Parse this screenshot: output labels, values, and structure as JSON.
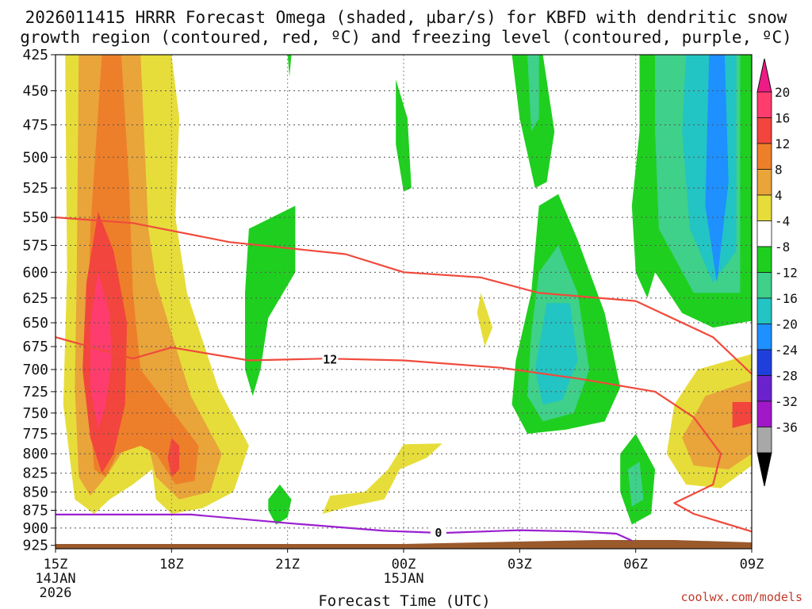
{
  "title": {
    "line1": "2026011415 HRRR Forecast Omega (shaded, µbar/s) for KBFD with dendritic snow",
    "line2": "growth region (contoured, red, ºC) and freezing level (contoured, purple, ºC)"
  },
  "credit": "coolwx.com/models",
  "chart_data": {
    "type": "heatmap",
    "title": "2026011415 HRRR Forecast Omega (shaded, µbar/s) for KBFD with dendritic snow growth region (contoured, red, ºC) and freezing level (contoured, purple, ºC)",
    "xlabel": "Forecast Time (UTC)",
    "ylabel": "",
    "x_range_hours": [
      0,
      18
    ],
    "x_ticks": [
      {
        "hour": 0,
        "label": "15Z",
        "sub": [
          "14JAN",
          "2026"
        ]
      },
      {
        "hour": 3,
        "label": "18Z",
        "sub": []
      },
      {
        "hour": 6,
        "label": "21Z",
        "sub": []
      },
      {
        "hour": 9,
        "label": "00Z",
        "sub": [
          "15JAN"
        ]
      },
      {
        "hour": 12,
        "label": "03Z",
        "sub": []
      },
      {
        "hour": 15,
        "label": "06Z",
        "sub": []
      },
      {
        "hour": 18,
        "label": "09Z",
        "sub": []
      }
    ],
    "y_ticks": [
      425,
      450,
      475,
      500,
      525,
      550,
      575,
      600,
      625,
      650,
      675,
      700,
      725,
      750,
      775,
      800,
      825,
      850,
      875,
      900,
      925
    ],
    "y_range": [
      425,
      930
    ],
    "y_scale": "log-pressure",
    "grid": true,
    "colorbar": {
      "labels": [
        "20",
        "16",
        "12",
        "8",
        "4",
        "-4",
        "-8",
        "-12",
        "-16",
        "-20",
        "-24",
        "-28",
        "-32",
        "-36"
      ],
      "colors": [
        "#ff3c6e",
        "#f2453d",
        "#ee7f2a",
        "#e9a43a",
        "#e6dd3a",
        "#ffffff",
        "#1fcf1f",
        "#3fd08a",
        "#22c4c4",
        "#1e90ff",
        "#1f3fdd",
        "#6a22cc",
        "#a018c8",
        "#a8a8a8"
      ],
      "top_color": "#ee1a86",
      "bottom_color": "#000000"
    },
    "series": [
      {
        "name": "12",
        "color": "#f04a3c",
        "x": [
          0,
          2.0,
          4.5,
          7.5,
          9.0,
          11.0,
          12.5,
          15.0,
          17.0,
          18.0
        ],
        "y": [
          550,
          555,
          572,
          583,
          600,
          605,
          620,
          628,
          665,
          705
        ]
      },
      {
        "name": "12",
        "color": "#f04a3c",
        "x": [
          0,
          2.0,
          3.0,
          5.0,
          7.0,
          9.0,
          11.5,
          13.5,
          15.5,
          16.5,
          17.2,
          17.0,
          16.0,
          16.5,
          18.0
        ],
        "y": [
          665,
          688,
          676,
          690,
          688,
          690,
          698,
          710,
          725,
          755,
          800,
          840,
          865,
          880,
          905
        ]
      },
      {
        "name": "0",
        "color": "#9b1fd0",
        "x": [
          0,
          3.5,
          6.0,
          8.5,
          10.0,
          12.0,
          13.5,
          14.5,
          14.9
        ],
        "y": [
          881,
          881,
          893,
          904,
          907,
          903,
          905,
          908,
          918
        ]
      }
    ],
    "contour_labels": [
      {
        "text": "12",
        "x": 7.1,
        "y": 689
      },
      {
        "text": "0",
        "x": 9.9,
        "y": 907
      }
    ],
    "shaded_regions": [
      {
        "value": 4,
        "color": "#e6dd3a",
        "points": [
          [
            0.25,
            425
          ],
          [
            3.0,
            425
          ],
          [
            3.2,
            470
          ],
          [
            3.1,
            550
          ],
          [
            3.4,
            620
          ],
          [
            4.2,
            720
          ],
          [
            5.0,
            790
          ],
          [
            4.6,
            850
          ],
          [
            3.8,
            872
          ],
          [
            3.0,
            880
          ],
          [
            2.6,
            860
          ],
          [
            2.5,
            820
          ],
          [
            2.0,
            840
          ],
          [
            1.4,
            860
          ],
          [
            1.0,
            880
          ],
          [
            0.5,
            860
          ],
          [
            0.2,
            740
          ],
          [
            0.3,
            600
          ]
        ]
      },
      {
        "value": 8,
        "color": "#e9a43a",
        "points": [
          [
            0.6,
            425
          ],
          [
            2.2,
            425
          ],
          [
            2.4,
            560
          ],
          [
            2.6,
            610
          ],
          [
            3.5,
            730
          ],
          [
            4.3,
            800
          ],
          [
            4.0,
            850
          ],
          [
            3.2,
            860
          ],
          [
            2.6,
            830
          ],
          [
            2.4,
            790
          ],
          [
            2.2,
            780
          ],
          [
            1.7,
            800
          ],
          [
            1.3,
            830
          ],
          [
            0.9,
            855
          ],
          [
            0.6,
            830
          ],
          [
            0.5,
            720
          ],
          [
            0.55,
            600
          ]
        ]
      },
      {
        "value": 12,
        "color": "#ee7f2a",
        "points": [
          [
            1.2,
            425
          ],
          [
            1.7,
            425
          ],
          [
            1.9,
            520
          ],
          [
            2.0,
            620
          ],
          [
            2.2,
            700
          ],
          [
            3.7,
            790
          ],
          [
            3.6,
            835
          ],
          [
            3.1,
            840
          ],
          [
            2.6,
            800
          ],
          [
            2.2,
            790
          ],
          [
            1.6,
            800
          ],
          [
            1.3,
            830
          ],
          [
            1.0,
            820
          ],
          [
            0.8,
            700
          ],
          [
            0.9,
            560
          ]
        ]
      },
      {
        "value": 16,
        "color": "#f2453d",
        "points": [
          [
            1.1,
            545
          ],
          [
            1.5,
            580
          ],
          [
            1.85,
            650
          ],
          [
            1.8,
            740
          ],
          [
            1.5,
            800
          ],
          [
            1.2,
            825
          ],
          [
            0.9,
            780
          ],
          [
            0.7,
            700
          ],
          [
            0.8,
            610
          ]
        ]
      },
      {
        "value": 16,
        "color": "#f2453d",
        "points": [
          [
            3.0,
            780
          ],
          [
            3.2,
            790
          ],
          [
            3.2,
            820
          ],
          [
            3.0,
            830
          ],
          [
            2.9,
            805
          ]
        ]
      },
      {
        "value": 20,
        "color": "#ff3c6e",
        "points": [
          [
            1.1,
            600
          ],
          [
            1.4,
            640
          ],
          [
            1.45,
            690
          ],
          [
            1.3,
            740
          ],
          [
            1.1,
            770
          ],
          [
            0.9,
            720
          ],
          [
            0.9,
            650
          ]
        ]
      },
      {
        "value": -4,
        "color": "#1fcf1f",
        "points": [
          [
            5.0,
            560
          ],
          [
            6.2,
            540
          ],
          [
            6.2,
            600
          ],
          [
            5.5,
            645
          ],
          [
            5.3,
            700
          ],
          [
            5.1,
            730
          ],
          [
            4.9,
            700
          ],
          [
            4.9,
            620
          ]
        ]
      },
      {
        "value": -4,
        "color": "#1fcf1f",
        "points": [
          [
            6.0,
            425
          ],
          [
            6.1,
            425
          ],
          [
            6.05,
            440
          ]
        ]
      },
      {
        "value": -4,
        "color": "#1fcf1f",
        "points": [
          [
            5.5,
            860
          ],
          [
            5.8,
            840
          ],
          [
            6.1,
            860
          ],
          [
            6.0,
            885
          ],
          [
            5.7,
            895
          ],
          [
            5.5,
            875
          ]
        ]
      },
      {
        "value": -4,
        "color": "#1fcf1f",
        "points": [
          [
            8.8,
            442
          ],
          [
            9.1,
            470
          ],
          [
            9.2,
            525
          ],
          [
            9.0,
            528
          ],
          [
            8.8,
            490
          ]
        ]
      },
      {
        "value": -4,
        "color": "#1fcf1f",
        "points": [
          [
            11.8,
            425
          ],
          [
            12.6,
            425
          ],
          [
            12.9,
            480
          ],
          [
            12.7,
            520
          ],
          [
            12.4,
            525
          ],
          [
            12.0,
            470
          ]
        ]
      },
      {
        "value": -4,
        "color": "#1fcf1f",
        "points": [
          [
            12.5,
            540
          ],
          [
            13.0,
            530
          ],
          [
            13.5,
            570
          ],
          [
            14.2,
            640
          ],
          [
            14.6,
            720
          ],
          [
            14.2,
            760
          ],
          [
            13.2,
            770
          ],
          [
            12.2,
            775
          ],
          [
            11.8,
            740
          ],
          [
            11.9,
            690
          ],
          [
            12.3,
            620
          ]
        ]
      },
      {
        "value": -4,
        "color": "#1fcf1f",
        "points": [
          [
            15.1,
            425
          ],
          [
            18.0,
            425
          ],
          [
            18.0,
            648
          ],
          [
            17.0,
            655
          ],
          [
            16.2,
            640
          ],
          [
            15.5,
            600
          ],
          [
            15.3,
            625
          ],
          [
            15.0,
            600
          ],
          [
            14.9,
            540
          ],
          [
            15.1,
            480
          ]
        ]
      },
      {
        "value": -4,
        "color": "#1fcf1f",
        "points": [
          [
            14.6,
            800
          ],
          [
            15.0,
            775
          ],
          [
            15.5,
            820
          ],
          [
            15.4,
            880
          ],
          [
            14.9,
            895
          ],
          [
            14.6,
            850
          ]
        ]
      },
      {
        "value": -8,
        "color": "#3fd08a",
        "points": [
          [
            12.2,
            425
          ],
          [
            12.5,
            425
          ],
          [
            12.5,
            470
          ],
          [
            12.3,
            480
          ]
        ]
      },
      {
        "value": -8,
        "color": "#3fd08a",
        "points": [
          [
            12.5,
            600
          ],
          [
            13.0,
            575
          ],
          [
            13.5,
            620
          ],
          [
            13.8,
            700
          ],
          [
            13.4,
            750
          ],
          [
            12.6,
            760
          ],
          [
            12.2,
            730
          ],
          [
            12.3,
            660
          ]
        ]
      },
      {
        "value": -8,
        "color": "#3fd08a",
        "points": [
          [
            15.5,
            425
          ],
          [
            17.7,
            425
          ],
          [
            17.7,
            620
          ],
          [
            16.5,
            620
          ],
          [
            15.6,
            560
          ],
          [
            15.5,
            480
          ]
        ]
      },
      {
        "value": -8,
        "color": "#3fd08a",
        "points": [
          [
            14.8,
            820
          ],
          [
            15.1,
            810
          ],
          [
            15.2,
            860
          ],
          [
            14.9,
            870
          ]
        ]
      },
      {
        "value": -12,
        "color": "#22c4c4",
        "points": [
          [
            12.7,
            630
          ],
          [
            13.3,
            630
          ],
          [
            13.5,
            690
          ],
          [
            13.1,
            735
          ],
          [
            12.6,
            740
          ],
          [
            12.4,
            700
          ]
        ]
      },
      {
        "value": -12,
        "color": "#22c4c4",
        "points": [
          [
            16.3,
            425
          ],
          [
            17.6,
            425
          ],
          [
            17.6,
            580
          ],
          [
            17.0,
            610
          ],
          [
            16.4,
            560
          ],
          [
            16.2,
            480
          ]
        ]
      },
      {
        "value": -16,
        "color": "#1e90ff",
        "points": [
          [
            16.9,
            425
          ],
          [
            17.3,
            425
          ],
          [
            17.4,
            520
          ],
          [
            17.1,
            610
          ],
          [
            16.8,
            540
          ]
        ]
      },
      {
        "value": 4,
        "color": "#e6dd3a",
        "points": [
          [
            9.0,
            788
          ],
          [
            10.0,
            787
          ],
          [
            9.6,
            805
          ],
          [
            8.9,
            820
          ],
          [
            8.5,
            860
          ],
          [
            7.6,
            870
          ],
          [
            6.9,
            880
          ],
          [
            7.1,
            855
          ],
          [
            8.0,
            850
          ],
          [
            8.6,
            820
          ]
        ]
      },
      {
        "value": 4,
        "color": "#e6dd3a",
        "points": [
          [
            11.0,
            620
          ],
          [
            11.3,
            655
          ],
          [
            11.1,
            675
          ],
          [
            10.9,
            640
          ]
        ]
      },
      {
        "value": 4,
        "color": "#e6dd3a",
        "points": [
          [
            16.6,
            700
          ],
          [
            18.0,
            683
          ],
          [
            18.0,
            815
          ],
          [
            17.2,
            845
          ],
          [
            16.3,
            840
          ],
          [
            15.8,
            800
          ],
          [
            16.0,
            740
          ]
        ]
      },
      {
        "value": 8,
        "color": "#e9a43a",
        "points": [
          [
            16.8,
            730
          ],
          [
            18.0,
            712
          ],
          [
            18.0,
            800
          ],
          [
            17.4,
            820
          ],
          [
            16.5,
            815
          ],
          [
            16.2,
            780
          ]
        ]
      },
      {
        "value": 16,
        "color": "#f2453d",
        "points": [
          [
            17.5,
            737
          ],
          [
            18.0,
            737
          ],
          [
            18.0,
            762
          ],
          [
            17.5,
            768
          ]
        ]
      }
    ]
  }
}
